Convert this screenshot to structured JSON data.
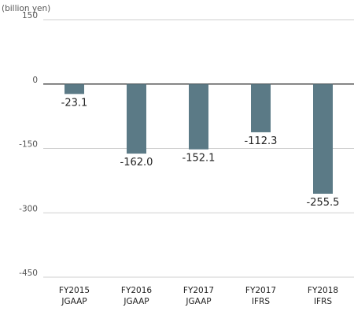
{
  "unit_label": "(billion yen)",
  "colors": {
    "bar": "#5b7a86",
    "grid": "#cfcfcf",
    "zero": "#222222"
  },
  "chart_data": {
    "type": "bar",
    "categories": [
      [
        "FY2015",
        "JGAAP"
      ],
      [
        "FY2016",
        "JGAAP"
      ],
      [
        "FY2017",
        "JGAAP"
      ],
      [
        "FY2017",
        "IFRS"
      ],
      [
        "FY2018",
        "IFRS"
      ]
    ],
    "values": [
      -23.1,
      -162.0,
      -152.1,
      -112.3,
      -255.5
    ],
    "value_labels": [
      "-23.1",
      "-162.0",
      "-152.1",
      "-112.3",
      "-255.5"
    ],
    "ylim": [
      -450,
      150
    ],
    "yticks": [
      150,
      0,
      -150,
      -300,
      -450
    ],
    "ytick_labels": [
      "150",
      "0",
      "-150",
      "-300",
      "-450"
    ],
    "grid": true,
    "title": "",
    "xlabel": "",
    "ylabel": "(billion yen)"
  }
}
